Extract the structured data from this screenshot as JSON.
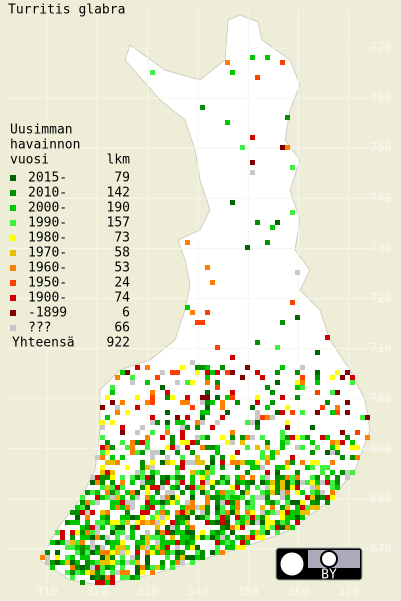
{
  "title": "Turritis glabra",
  "legend": {
    "header": [
      "Uusimman",
      "havainnon",
      "vuosi"
    ],
    "count_header": "lkm",
    "entries": [
      {
        "label": "2015-",
        "count": "79",
        "color": "#006400"
      },
      {
        "label": "2010-",
        "count": "142",
        "color": "#009000"
      },
      {
        "label": "2000-",
        "count": "190",
        "color": "#00c800"
      },
      {
        "label": "1990-",
        "count": "157",
        "color": "#40f040"
      },
      {
        "label": "1980-",
        "count": "73",
        "color": "#ffff00"
      },
      {
        "label": "1970-",
        "count": "58",
        "color": "#e8c000"
      },
      {
        "label": "1960-",
        "count": "53",
        "color": "#ff8000"
      },
      {
        "label": "1950-",
        "count": "24",
        "color": "#ff4000"
      },
      {
        "label": "1900-",
        "count": "74",
        "color": "#d00000"
      },
      {
        "label": "-1899",
        "count": "6",
        "color": "#800000"
      },
      {
        "label": "???",
        "count": "66",
        "color": "#c8c8c8"
      }
    ],
    "total_label": "Yhteensä",
    "total": "922"
  },
  "map": {
    "x_ticks": [
      310,
      320,
      330,
      340,
      350,
      360,
      370
    ],
    "y_ticks": [
      670,
      680,
      690,
      700,
      710,
      720,
      730,
      740,
      750,
      760,
      770
    ]
  },
  "license": "BY"
}
